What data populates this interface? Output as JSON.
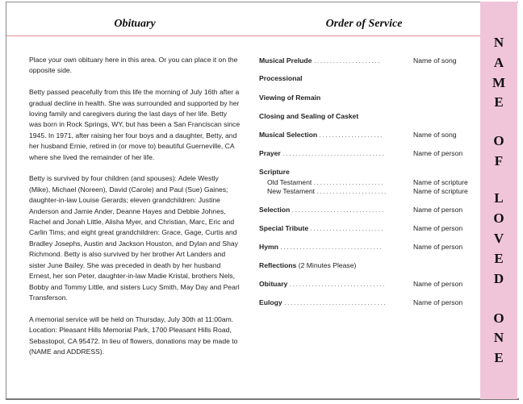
{
  "obituary": {
    "heading": "Obituary",
    "paragraphs": [
      "Place your own obituary here in this area. Or you can place it on the opposite side.",
      "Betty passed peacefully from this life the morning of July 16th after a gradual decline in health.  She was surrounded and supported by her loving family and caregivers during the last days of her life.  Betty was born in Rock Springs, WY, but has been a San Franciscan since 1945.  In 1971, after raising her four boys and a daughter, Betty, and her husband Ernie, retired in (or move to) beautiful Guerneville, CA where she lived the remainder of her life.",
      "Betty is survived by four children (and spouses): Adele Westly (Mike), Michael (Noreen), David (Carole) and Paul (Sue) Gaines;  daughter-in-law Louise Gerards;  eleven grandchildren: Justine Anderson and Jamie Ander, Deanne Hayes and Debbie Johnes, Rachel and Jonah Little, Alisha Myer, and Christian, Marc, Eric and Carlin Tims;  and eight great grandchildren: Grace, Gage, Curtis and Bradley Josephs, Austin and Jackson Houston, and Dylan and Shay Richmond.  Betty is also survived by her brother Art Landers and sister June Bailey.  She was preceded in death by her husband Ernest, her son Peter, daughter-in-law Madie Kristal, brothers Nels, Bobby and Tommy Little, and sisters Lucy Smith, May Day and Pearl Transferson.",
      "A memorial service will be held on Thursday, July 30th at 11:00am.  Location:  Pleasant Hills Memorial Park, 1700 Pleasant Hills Road, Sebastopol, CA 95472.  In lieu of flowers, donations may be made to (NAME and ADDRESS)."
    ]
  },
  "service": {
    "heading": "Order of Service",
    "items": [
      {
        "label": "Musical Prelude",
        "dots": ". . . . . . . . . . . . . . . . .  . . . .",
        "value": "Name of song"
      },
      {
        "label": "Processional",
        "dots": "",
        "value": ""
      },
      {
        "label": "Viewing of Remain",
        "dots": "",
        "value": ""
      },
      {
        "label": "Closing and Sealing of Casket",
        "dots": "",
        "value": ""
      },
      {
        "label": "Musical Selection",
        "dots": ". . . . . . . . . . . . . . . . . . . .",
        "value": "Name of song"
      },
      {
        "label": "Prayer",
        "dots": ". . . . . . . . . . . . . . . . . . . . . . . . . . . . . . . .",
        "value": "Name of person"
      },
      {
        "label": "Scripture",
        "dots": "",
        "value": ""
      },
      {
        "label": "Old Testament",
        "dots": ". . . . . . . . . . . . . . . . . . . . . .",
        "value": "Name of scripture"
      },
      {
        "label": "New Testament",
        "dots": ". . . . . . . . . . . . . . . . . . . . . .",
        "value": "Name of scripture"
      },
      {
        "label": "Selection",
        "dots": ". . . . . . . . . . . . . . . . . . . . . . . . . . . . .",
        "value": "Name of person"
      },
      {
        "label": "Special Tribute",
        "dots": ". . . . . . . . . . . . . . . . . . . . . . .",
        "value": "Name of person"
      },
      {
        "label": "Hymn",
        "dots": ". . . . . . . . . . . . . . . . . . . . . . . . . . . . . . . .",
        "value": "Name of person"
      },
      {
        "label": "Reflections",
        "note": "(2 Minutes Please)",
        "dots": "",
        "value": ""
      },
      {
        "label": "Obituary",
        "dots": ". . . . . . . . . . . . . . . . . . . . . . . . . . . . . .",
        "value": "Name of person"
      },
      {
        "label": "Eulogy",
        "dots": ". . . . . . . . . . . . . . . . . . . . . . . . . . . . . . . .",
        "value": "Name of person"
      }
    ]
  },
  "side_panel": {
    "text": "NAME OF LOVED ONE",
    "letters": [
      "N",
      "A",
      "M",
      "E",
      "O",
      "F",
      "L",
      "O",
      "V",
      "E",
      "D",
      "O",
      "N",
      "E"
    ],
    "color": "#f1c5d9"
  }
}
